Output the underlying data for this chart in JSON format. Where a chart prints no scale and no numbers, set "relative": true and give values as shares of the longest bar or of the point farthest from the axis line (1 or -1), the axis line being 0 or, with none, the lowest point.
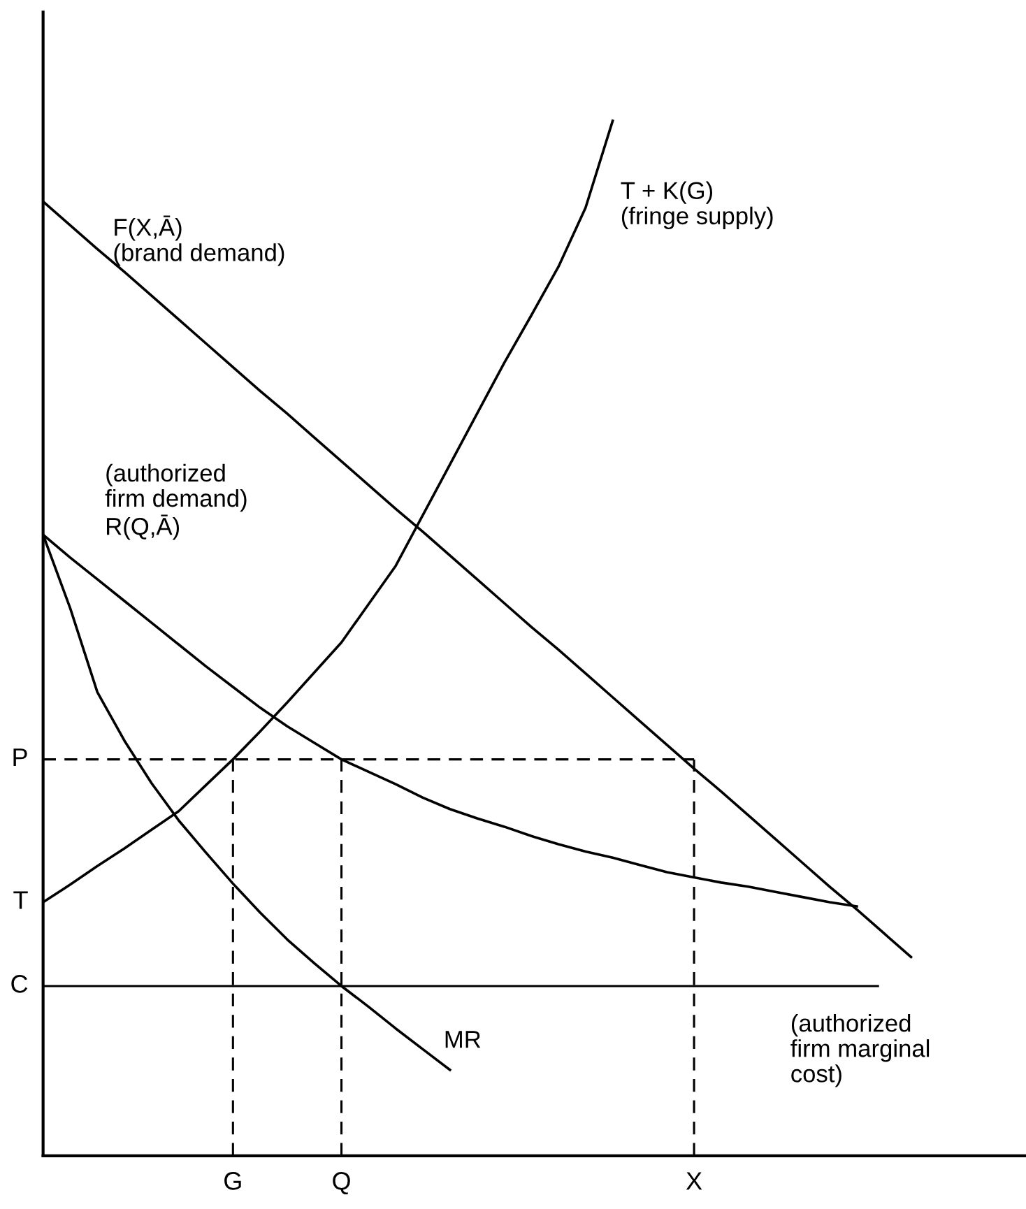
{
  "chart_data": {
    "type": "line",
    "relative": true,
    "line_style": "solid",
    "categories": [
      null,
      null,
      null,
      null,
      null,
      null,
      null,
      "G",
      null,
      null,
      null,
      "Q",
      null,
      null,
      null,
      null,
      null,
      null,
      null,
      null,
      null,
      null,
      null,
      null,
      "X",
      null,
      null,
      null,
      null,
      null,
      null,
      null,
      null,
      null,
      null,
      null,
      null
    ],
    "series": [
      {
        "name": "F(X,Ā)\n(brand demand)",
        "color": "#000000",
        "values": [
          0.922,
          0.899,
          0.876,
          0.854,
          0.831,
          0.808,
          0.785,
          0.762,
          0.739,
          0.717,
          0.694,
          0.671,
          0.648,
          0.625,
          0.603,
          0.58,
          0.557,
          0.534,
          0.511,
          0.489,
          0.466,
          0.443,
          0.42,
          0.397,
          0.374,
          0.352,
          0.329,
          0.306,
          0.283,
          0.26,
          0.238,
          0.215,
          0.192,
          null,
          null,
          null,
          null
        ]
      },
      {
        "name": "T + K(G)\n(fringe supply)",
        "color": "#000000",
        "values": [
          0.245,
          0.262,
          0.28,
          0.297,
          0.315,
          0.333,
          0.358,
          0.383,
          0.41,
          0.438,
          0.467,
          0.496,
          0.533,
          0.57,
          0.619,
          0.668,
          0.717,
          0.766,
          0.812,
          0.859,
          0.916,
          1.0,
          null,
          null,
          null,
          null,
          null,
          null,
          null,
          null,
          null,
          null,
          null,
          null,
          null,
          null,
          null
        ]
      },
      {
        "name": "(authorized\nfirm demand)\nR(Q,Ā)",
        "color": "#000000",
        "values": [
          0.6,
          0.578,
          0.557,
          0.536,
          0.515,
          0.494,
          0.473,
          0.453,
          0.433,
          0.415,
          0.399,
          0.383,
          0.371,
          0.359,
          0.346,
          0.335,
          0.326,
          0.318,
          0.309,
          0.301,
          0.294,
          0.288,
          0.281,
          0.274,
          0.269,
          0.264,
          0.26,
          0.255,
          0.25,
          0.245,
          0.241,
          null,
          null,
          null,
          null,
          null,
          null
        ]
      },
      {
        "name": "MR",
        "color": "#000000",
        "values": [
          0.6,
          0.529,
          0.448,
          0.401,
          0.36,
          0.324,
          0.293,
          0.263,
          0.235,
          0.209,
          0.186,
          0.164,
          0.144,
          0.123,
          0.103,
          0.083,
          null,
          null,
          null,
          null,
          null,
          null,
          null,
          null,
          null,
          null,
          null,
          null,
          null,
          null,
          null,
          null,
          null,
          null,
          null,
          null,
          null
        ]
      }
    ],
    "ref_lines": [
      {
        "axis": "y",
        "value": 0.383,
        "label": "P",
        "color": "#000000",
        "line_style": "dashed"
      },
      {
        "axis": "y",
        "value": 0.164,
        "label": "C",
        "color": "#000000",
        "line_style": "solid"
      },
      {
        "axis": "x",
        "value": "G",
        "color": "#000000",
        "line_style": "dashed"
      },
      {
        "axis": "x",
        "value": "Q",
        "color": "#000000",
        "line_style": "dashed"
      },
      {
        "axis": "x",
        "value": "X",
        "color": "#000000",
        "line_style": "dashed"
      }
    ],
    "annotations": [
      "T",
      "(authorized\nfirm marginal\ncost)"
    ]
  }
}
